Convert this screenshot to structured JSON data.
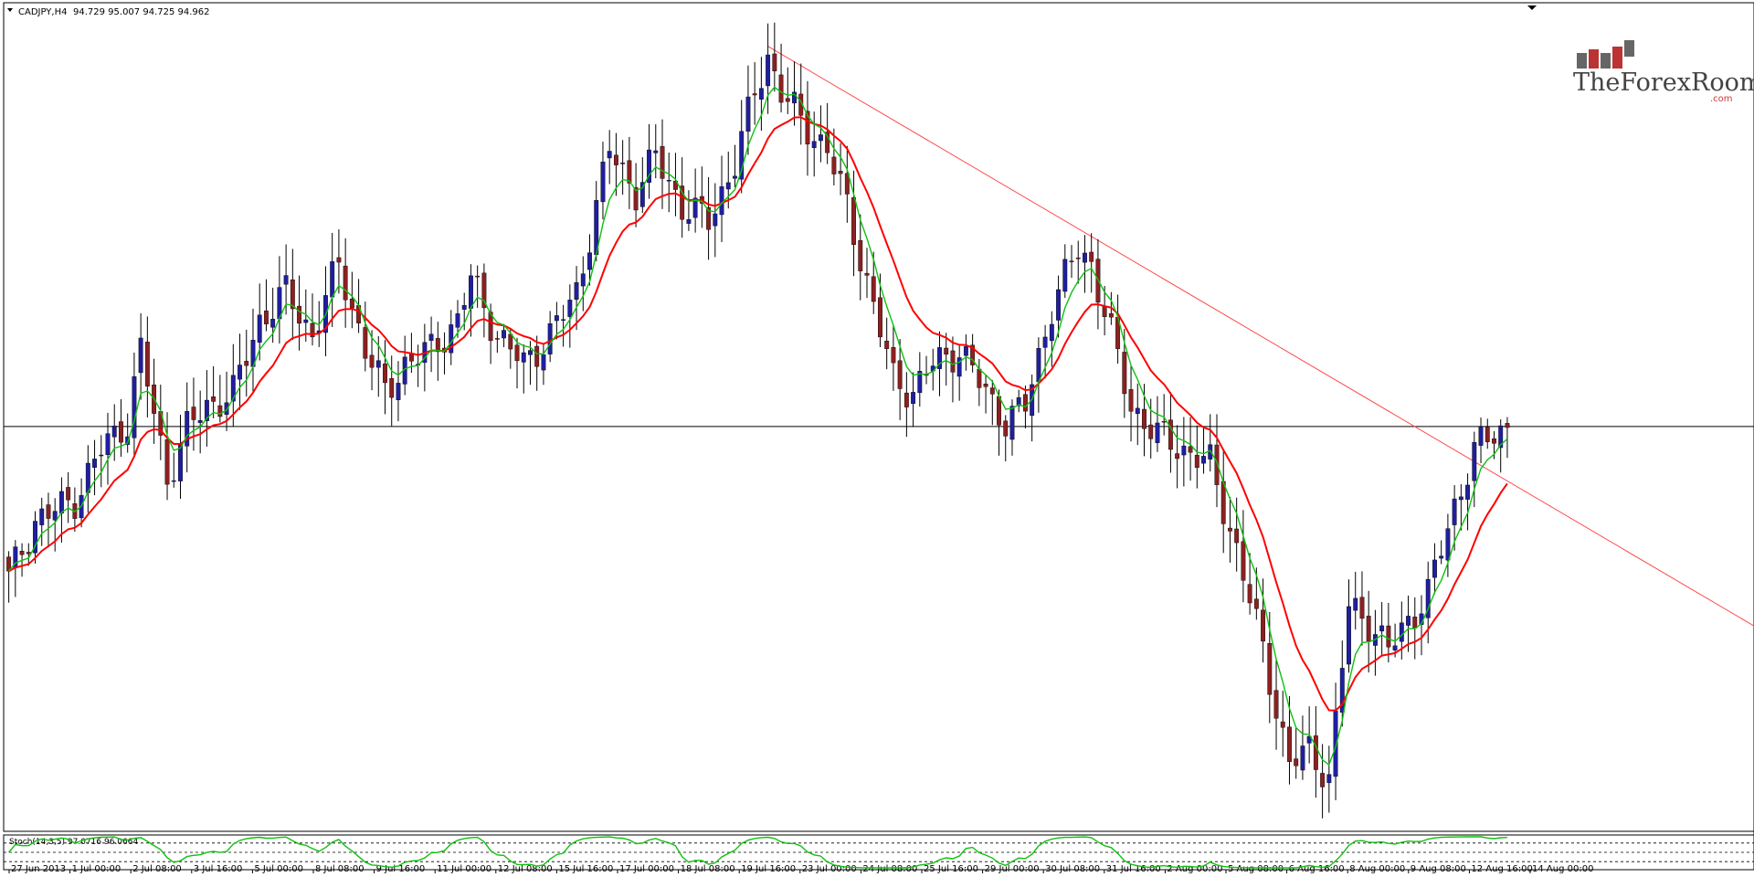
{
  "header": {
    "symbol": "CADJPY,H4",
    "ohlc": "94.729 95.007 94.725 94.962"
  },
  "logo": {
    "main": "TheForexRoom",
    "sub": ".com"
  },
  "indicator": {
    "label": "Stoch(14,3,5) 97.0716 96.0664"
  },
  "colors": {
    "bull_body": "#1f1f9f",
    "bear_body": "#8c2020",
    "fast_ma": "#10c010",
    "slow_ma": "#ff0000",
    "trendline": "#ff4a4a",
    "price_line": "#000000",
    "stoch": "#10c010"
  },
  "chart_data": {
    "type": "candlestick",
    "symbol": "CADJPY",
    "timeframe": "H4",
    "current_price": 94.962,
    "current_price_label": "94.962",
    "ylim": [
      92.195,
      97.765
    ],
    "y_ticks": [
      "97.765",
      "97.550",
      "97.335",
      "97.120",
      "96.905",
      "96.690",
      "96.480",
      "96.265",
      "96.050",
      "95.835",
      "95.620",
      "95.410",
      "95.195",
      "94.980",
      "94.765",
      "94.550",
      "94.335",
      "94.120",
      "93.910",
      "93.695",
      "93.480",
      "93.265",
      "93.050",
      "92.840",
      "92.625",
      "92.410",
      "92.195"
    ],
    "x_ticks": [
      "27 Jun 2013",
      "1 Jul 00:00",
      "2 Jul 08:00",
      "3 Jul 16:00",
      "5 Jul 00:00",
      "8 Jul 08:00",
      "9 Jul 16:00",
      "11 Jul 00:00",
      "12 Jul 08:00",
      "15 Jul 16:00",
      "17 Jul 00:00",
      "18 Jul 08:00",
      "19 Jul 16:00",
      "23 Jul 00:00",
      "24 Jul 08:00",
      "25 Jul 16:00",
      "29 Jul 00:00",
      "30 Jul 08:00",
      "31 Jul 16:00",
      "2 Aug 00:00",
      "5 Aug 08:00",
      "6 Aug 16:00",
      "8 Aug 00:00",
      "9 Aug 08:00",
      "12 Aug 16:00",
      "14 Aug 00:00"
    ],
    "trendline": {
      "start": [
        115,
        97.62
      ],
      "end": [
        265,
        93.55
      ]
    },
    "stoch_levels": [
      "80",
      "50",
      "20"
    ],
    "anchors": [
      [
        0,
        93.9
      ],
      [
        4,
        94.3
      ],
      [
        10,
        94.45
      ],
      [
        14,
        94.8
      ],
      [
        18,
        95.0
      ],
      [
        20,
        95.5
      ],
      [
        24,
        94.6
      ],
      [
        27,
        94.95
      ],
      [
        30,
        95.1
      ],
      [
        34,
        95.2
      ],
      [
        38,
        95.7
      ],
      [
        42,
        95.9
      ],
      [
        46,
        95.6
      ],
      [
        50,
        96.1
      ],
      [
        54,
        95.5
      ],
      [
        57,
        95.2
      ],
      [
        60,
        95.4
      ],
      [
        64,
        95.5
      ],
      [
        68,
        95.7
      ],
      [
        70,
        96.0
      ],
      [
        74,
        95.6
      ],
      [
        78,
        95.4
      ],
      [
        82,
        95.6
      ],
      [
        86,
        95.9
      ],
      [
        88,
        96.3
      ],
      [
        91,
        96.9
      ],
      [
        95,
        96.6
      ],
      [
        98,
        96.85
      ],
      [
        102,
        96.5
      ],
      [
        106,
        96.4
      ],
      [
        110,
        96.8
      ],
      [
        113,
        97.3
      ],
      [
        115,
        97.55
      ],
      [
        117,
        97.3
      ],
      [
        120,
        97.1
      ],
      [
        124,
        96.9
      ],
      [
        127,
        96.5
      ],
      [
        131,
        95.8
      ],
      [
        134,
        95.3
      ],
      [
        137,
        95.2
      ],
      [
        140,
        95.4
      ],
      [
        144,
        95.5
      ],
      [
        148,
        95.2
      ],
      [
        151,
        95.0
      ],
      [
        154,
        95.1
      ],
      [
        158,
        95.8
      ],
      [
        162,
        96.2
      ],
      [
        164,
        96.1
      ],
      [
        167,
        95.6
      ],
      [
        170,
        95.1
      ],
      [
        174,
        94.9
      ],
      [
        178,
        94.8
      ],
      [
        182,
        94.7
      ],
      [
        186,
        94.1
      ],
      [
        190,
        93.4
      ],
      [
        194,
        92.6
      ],
      [
        197,
        92.7
      ],
      [
        200,
        92.5
      ],
      [
        203,
        93.7
      ],
      [
        206,
        93.6
      ],
      [
        209,
        93.4
      ],
      [
        212,
        93.6
      ],
      [
        215,
        93.8
      ],
      [
        219,
        94.4
      ],
      [
        222,
        94.8
      ],
      [
        225,
        94.9
      ],
      [
        227,
        94.96
      ]
    ]
  }
}
